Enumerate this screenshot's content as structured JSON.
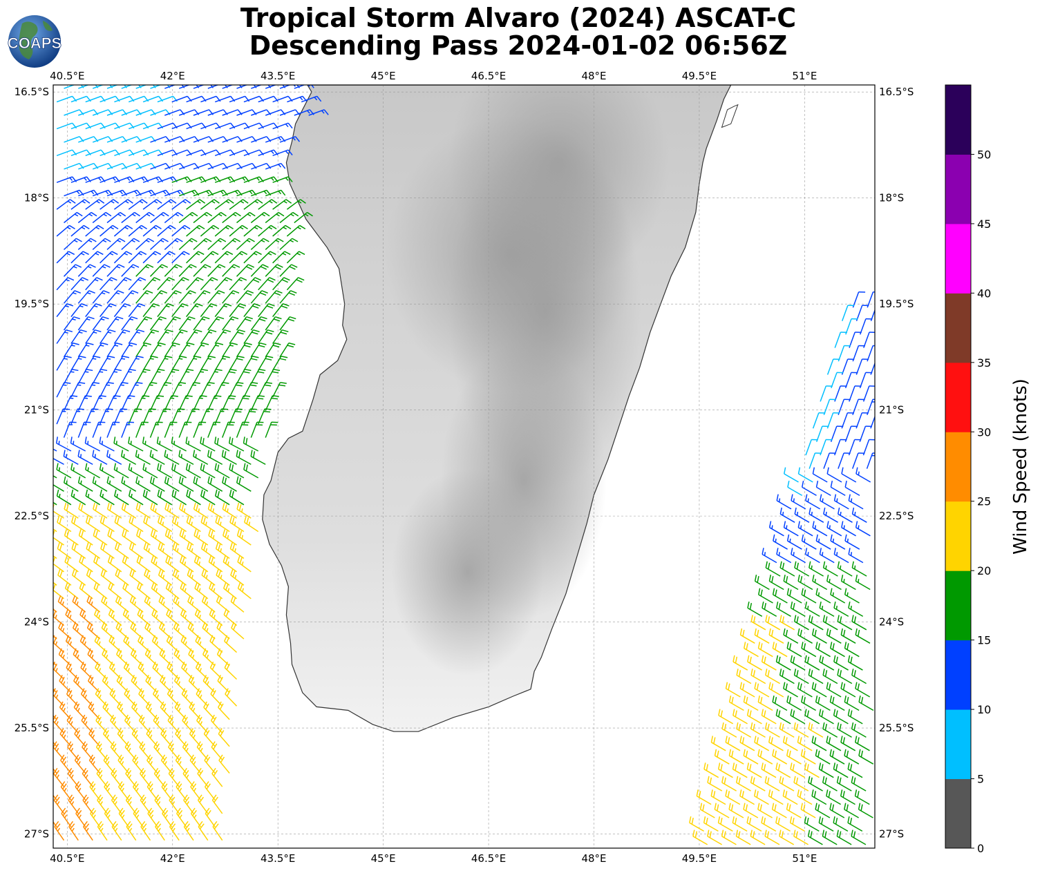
{
  "title": {
    "line1": "Tropical Storm Alvaro (2024) ASCAT-C",
    "line2": "Descending Pass 2024-01-02 06:56Z"
  },
  "logo": {
    "text": "COAPS",
    "ocean_color": "#1f5fb0",
    "land_color": "#4a8a3a"
  },
  "map": {
    "lon_range": [
      40.3,
      52.0
    ],
    "lat_range": [
      -27.2,
      -16.4
    ],
    "grid": true,
    "lon_ticks": [
      "40.5°E",
      "42°E",
      "43.5°E",
      "45°E",
      "46.5°E",
      "48°E",
      "49.5°E",
      "51°E"
    ],
    "lat_ticks": [
      "16.5°S",
      "18°S",
      "19.5°S",
      "21°S",
      "22.5°S",
      "24°S",
      "25.5°S",
      "27°S"
    ],
    "land_shading": "grayscale elevation",
    "land_polygon": [
      [
        43.92,
        -16.4
      ],
      [
        43.98,
        -16.5
      ],
      [
        43.85,
        -16.75
      ],
      [
        43.75,
        -16.95
      ],
      [
        43.7,
        -17.2
      ],
      [
        43.62,
        -17.5
      ],
      [
        43.67,
        -17.8
      ],
      [
        43.9,
        -18.3
      ],
      [
        44.2,
        -18.7
      ],
      [
        44.37,
        -19.0
      ],
      [
        44.45,
        -19.5
      ],
      [
        44.42,
        -19.8
      ],
      [
        44.48,
        -20.0
      ],
      [
        44.35,
        -20.3
      ],
      [
        44.1,
        -20.5
      ],
      [
        44.0,
        -20.85
      ],
      [
        43.85,
        -21.3
      ],
      [
        43.65,
        -21.4
      ],
      [
        43.5,
        -21.6
      ],
      [
        43.4,
        -22.0
      ],
      [
        43.3,
        -22.2
      ],
      [
        43.28,
        -22.55
      ],
      [
        43.38,
        -22.9
      ],
      [
        43.55,
        -23.2
      ],
      [
        43.65,
        -23.5
      ],
      [
        43.62,
        -23.9
      ],
      [
        43.68,
        -24.3
      ],
      [
        43.7,
        -24.6
      ],
      [
        43.85,
        -25.0
      ],
      [
        44.05,
        -25.2
      ],
      [
        44.5,
        -25.25
      ],
      [
        44.85,
        -25.45
      ],
      [
        45.15,
        -25.55
      ],
      [
        45.5,
        -25.55
      ],
      [
        46.0,
        -25.35
      ],
      [
        46.5,
        -25.2
      ],
      [
        46.85,
        -25.05
      ],
      [
        47.1,
        -24.95
      ],
      [
        47.15,
        -24.7
      ],
      [
        47.25,
        -24.5
      ],
      [
        47.4,
        -24.1
      ],
      [
        47.6,
        -23.6
      ],
      [
        47.75,
        -23.1
      ],
      [
        47.9,
        -22.6
      ],
      [
        48.0,
        -22.2
      ],
      [
        48.2,
        -21.7
      ],
      [
        48.35,
        -21.25
      ],
      [
        48.5,
        -20.8
      ],
      [
        48.65,
        -20.4
      ],
      [
        48.8,
        -19.9
      ],
      [
        48.95,
        -19.5
      ],
      [
        49.1,
        -19.1
      ],
      [
        49.3,
        -18.7
      ],
      [
        49.45,
        -18.2
      ],
      [
        49.5,
        -17.8
      ],
      [
        49.55,
        -17.5
      ],
      [
        49.6,
        -17.3
      ],
      [
        49.75,
        -16.9
      ],
      [
        49.85,
        -16.6
      ],
      [
        49.95,
        -16.4
      ]
    ],
    "island": [
      [
        49.9,
        -16.75
      ],
      [
        50.0,
        -16.7
      ],
      [
        50.05,
        -16.68
      ],
      [
        49.95,
        -16.95
      ],
      [
        49.82,
        -17.0
      ]
    ]
  },
  "colorbar": {
    "label": "Wind Speed (knots)",
    "levels": [
      0,
      5,
      10,
      15,
      20,
      25,
      30,
      35,
      40,
      45,
      50,
      55
    ],
    "tick_labels": [
      "0",
      "5",
      "10",
      "15",
      "20",
      "25",
      "30",
      "35",
      "40",
      "45",
      "50"
    ],
    "colors": [
      "#575757",
      "#00bfff",
      "#0040ff",
      "#009900",
      "#ffd400",
      "#ff8c00",
      "#ff1010",
      "#7f3a28",
      "#ff00ff",
      "#8b00b0",
      "#2b005a"
    ]
  },
  "wind_data": {
    "type": "wind-barbs",
    "swaths": [
      {
        "side": "west",
        "lon_range": [
          40.3,
          44.0
        ],
        "lat_range": [
          -27.2,
          -16.4
        ],
        "speed_zones_kt": [
          {
            "lat_max": -16.4,
            "lat_min": -17.6,
            "speed_near_edge": 8,
            "speed_near_coast": 13
          },
          {
            "lat_max": -17.6,
            "lat_min": -19.0,
            "speed_near_edge": 13,
            "speed_near_coast": 17
          },
          {
            "lat_max": -19.0,
            "lat_min": -21.8,
            "speed_near_edge": 13,
            "speed_near_coast": 19
          },
          {
            "lat_max": -21.8,
            "lat_min": -22.5,
            "speed_near_edge": 17,
            "speed_near_coast": 18
          },
          {
            "lat_max": -22.5,
            "lat_min": -23.8,
            "speed_near_edge": 22,
            "speed_near_coast": 23
          },
          {
            "lat_max": -23.8,
            "lat_min": -27.2,
            "speed_near_edge": 26,
            "speed_near_coast": 22
          }
        ]
      },
      {
        "side": "east",
        "lon_range": [
          49.4,
          52.0
        ],
        "lat_range": [
          -27.2,
          -19.5
        ],
        "speed_zones_kt": [
          {
            "lat_max": -19.5,
            "lat_min": -22.3,
            "speed_near_edge": 9,
            "speed_near_coast": 13
          },
          {
            "lat_max": -22.3,
            "lat_min": -23.3,
            "speed_near_edge": 13,
            "speed_near_coast": 14
          },
          {
            "lat_max": -23.3,
            "lat_min": -24.1,
            "speed_near_edge": 18,
            "speed_near_coast": 17
          },
          {
            "lat_max": -24.1,
            "lat_min": -25.5,
            "speed_near_edge": 21,
            "speed_near_coast": 18
          },
          {
            "lat_max": -25.5,
            "lat_min": -27.2,
            "speed_near_edge": 22,
            "speed_near_coast": 19
          }
        ]
      }
    ]
  }
}
